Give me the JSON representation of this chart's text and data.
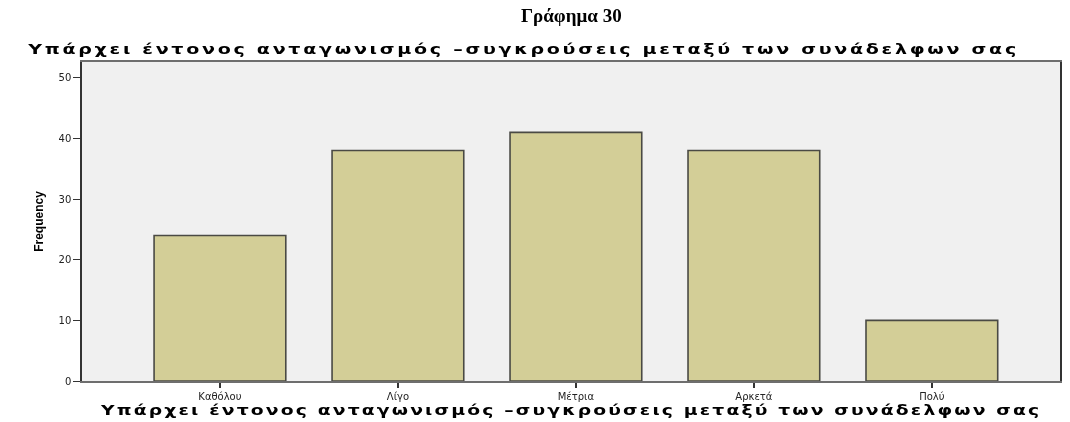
{
  "chart_data": {
    "type": "bar",
    "title": "Γράφημα 30",
    "subtitle": "Υπάρχει έντονος ανταγωνισμός –συγκρούσεις μεταξύ των συνάδελφων σας",
    "xlabel": "Υπάρχει έντονος ανταγωνισμός –συγκρούσεις μεταξύ των συνάδελφων σας",
    "ylabel": "Frequency",
    "categories": [
      "Καθόλου",
      "Λίγο",
      "Μέτρια",
      "Αρκετά",
      "Πολύ"
    ],
    "values": [
      24,
      38,
      41,
      38,
      10
    ],
    "color": "#d3ce97",
    "ylim": [
      0,
      52.6
    ],
    "yticks": [
      0,
      10,
      20,
      30,
      40,
      50
    ],
    "grid": false,
    "legend": false
  }
}
